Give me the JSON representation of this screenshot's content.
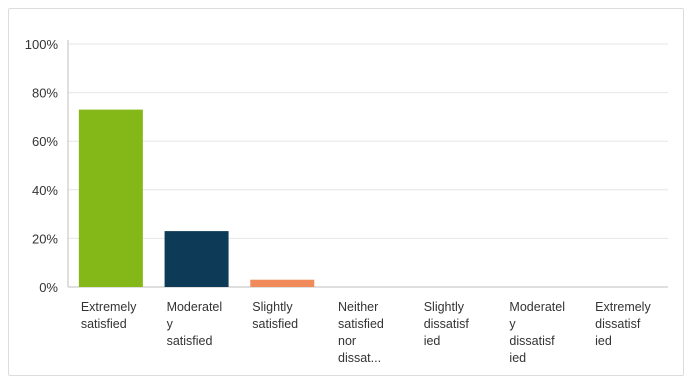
{
  "chart_data": {
    "type": "bar",
    "categories": [
      [
        "Extremely",
        "satisfied"
      ],
      [
        "Moderatel",
        "y",
        "satisfied"
      ],
      [
        "Slightly",
        "satisfied"
      ],
      [
        "Neither",
        "satisfied",
        "nor",
        "dissat..."
      ],
      [
        "Slightly",
        "dissatisf",
        "ied"
      ],
      [
        "Moderatel",
        "y",
        "dissatisf",
        "ied"
      ],
      [
        "Extremely",
        "dissatisf",
        "ied"
      ]
    ],
    "values": [
      73,
      23,
      3,
      0,
      0,
      0,
      0
    ],
    "colors": [
      "#84b819",
      "#0d3a56",
      "#f08a5b",
      "#cccccc",
      "#cccccc",
      "#cccccc",
      "#cccccc"
    ],
    "ylim": [
      0,
      100
    ],
    "yticks": [
      0,
      20,
      40,
      60,
      80,
      100
    ],
    "ytick_format": "percent",
    "grid": true,
    "legend": "none"
  }
}
